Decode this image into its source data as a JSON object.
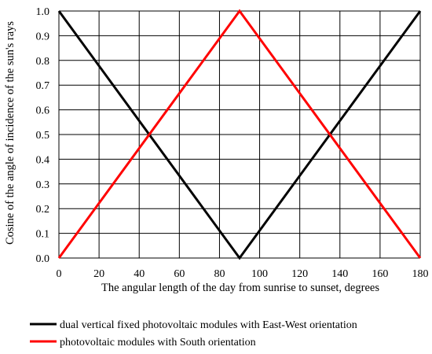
{
  "chart_data": {
    "type": "line",
    "xlabel": "The angular length of the day from sunrise to sunset, degrees",
    "ylabel": "Cosine of the angle of incidence of the sun's rays",
    "xlim": [
      0,
      180
    ],
    "ylim": [
      0.0,
      1.0
    ],
    "x_ticks": [
      "0",
      "20",
      "40",
      "60",
      "80",
      "100",
      "120",
      "140",
      "160",
      "180"
    ],
    "y_ticks": [
      "0.0",
      "0.1",
      "0.2",
      "0.3",
      "0.4",
      "0.5",
      "0.6",
      "0.7",
      "0.8",
      "0.9",
      "1.0"
    ],
    "grid": true,
    "legend_position": "bottom",
    "series": [
      {
        "name": "dual vertical fixed photovoltaic modules with East-West orientation",
        "color": "#000000",
        "x": [
          0,
          90,
          180
        ],
        "y": [
          1.0,
          0.0,
          1.0
        ]
      },
      {
        "name": "photovoltaic modules with South orientation",
        "color": "#ff0000",
        "x": [
          0,
          90,
          180
        ],
        "y": [
          0.0,
          1.0,
          0.0
        ]
      }
    ]
  }
}
